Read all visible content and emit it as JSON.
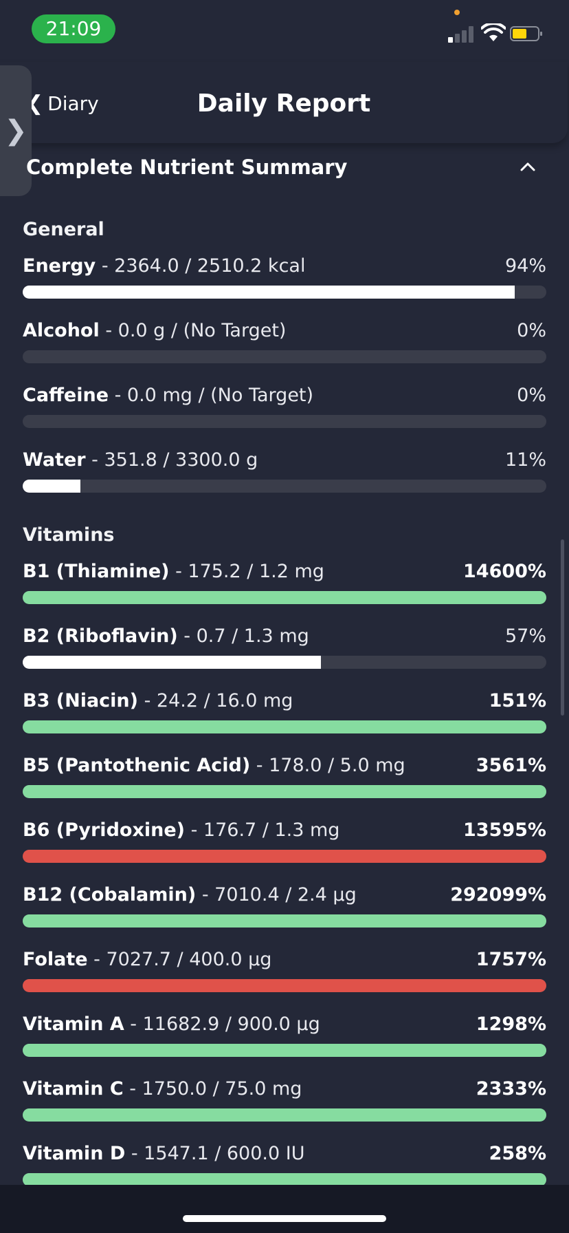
{
  "status_bar": {
    "time": "21:09"
  },
  "header": {
    "back_label": "Diary",
    "title": "Daily Report"
  },
  "section": {
    "title": "Complete Nutrient Summary"
  },
  "colors": {
    "neutral_fill": "#ffffff",
    "good_fill": "#86dca0",
    "over_fill": "#e0524a",
    "track": "#3a3d4a",
    "status_green": "#2bb24c"
  },
  "groups": [
    {
      "title": "General",
      "items": [
        {
          "name": "Energy",
          "detail": " - 2364.0 / 2510.2 kcal",
          "percent_label": "94%",
          "fill_fraction": 0.94,
          "status": "neutral"
        },
        {
          "name": "Alcohol",
          "detail": " - 0.0 g / (No Target)",
          "percent_label": "0%",
          "fill_fraction": 0,
          "status": "neutral"
        },
        {
          "name": "Caffeine",
          "detail": " - 0.0 mg / (No Target)",
          "percent_label": "0%",
          "fill_fraction": 0,
          "status": "neutral"
        },
        {
          "name": "Water",
          "detail": " - 351.8 / 3300.0 g",
          "percent_label": "11%",
          "fill_fraction": 0.11,
          "status": "neutral"
        }
      ]
    },
    {
      "title": "Vitamins",
      "items": [
        {
          "name": "B1 (Thiamine)",
          "detail": " - 175.2 / 1.2 mg",
          "percent_label": "14600%",
          "fill_fraction": 1,
          "status": "good"
        },
        {
          "name": "B2 (Riboflavin)",
          "detail": " - 0.7 / 1.3 mg",
          "percent_label": "57%",
          "fill_fraction": 0.57,
          "status": "neutral"
        },
        {
          "name": "B3 (Niacin)",
          "detail": " - 24.2 / 16.0 mg",
          "percent_label": "151%",
          "fill_fraction": 1,
          "status": "good"
        },
        {
          "name": "B5 (Pantothenic Acid)",
          "detail": " - 178.0 / 5.0 mg",
          "percent_label": "3561%",
          "fill_fraction": 1,
          "status": "good"
        },
        {
          "name": "B6 (Pyridoxine)",
          "detail": " - 176.7 / 1.3 mg",
          "percent_label": "13595%",
          "fill_fraction": 1,
          "status": "over"
        },
        {
          "name": "B12 (Cobalamin)",
          "detail": " - 7010.4 / 2.4 µg",
          "percent_label": "292099%",
          "fill_fraction": 1,
          "status": "good"
        },
        {
          "name": "Folate",
          "detail": " - 7027.7 / 400.0 µg",
          "percent_label": "1757%",
          "fill_fraction": 1,
          "status": "over"
        },
        {
          "name": "Vitamin A",
          "detail": " - 11682.9 / 900.0 µg",
          "percent_label": "1298%",
          "fill_fraction": 1,
          "status": "good"
        },
        {
          "name": "Vitamin C",
          "detail": " - 1750.0 / 75.0 mg",
          "percent_label": "2333%",
          "fill_fraction": 1,
          "status": "good"
        },
        {
          "name": "Vitamin D",
          "detail": " - 1547.1 / 600.0 IU",
          "percent_label": "258%",
          "fill_fraction": 1,
          "status": "good"
        }
      ]
    }
  ]
}
